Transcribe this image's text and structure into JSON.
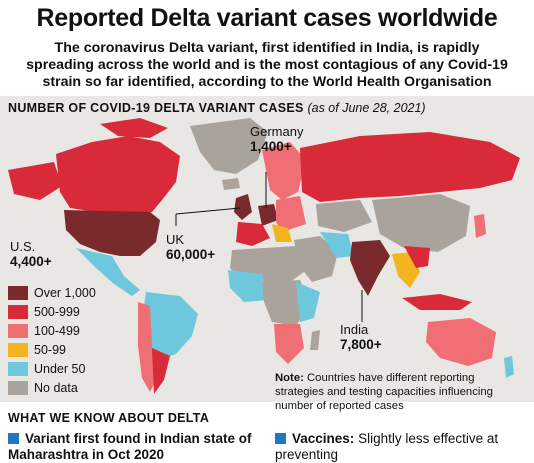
{
  "header": {
    "title": "Reported Delta variant cases worldwide",
    "subtitle": "The coronavirus Delta variant, first identified in India, is rapidly spreading across the world and is the most contagious of any Covid-19 strain so far identified, according to the World Health Organisation"
  },
  "map": {
    "section_title": "Number of Covid-19 Delta variant cases",
    "section_date": "(as of June 28, 2021)",
    "labels": {
      "germany": {
        "name": "Germany",
        "value": "1,400+"
      },
      "us": {
        "name": "U.S.",
        "value": "4,400+"
      },
      "uk": {
        "name": "UK",
        "value": "60,000+"
      },
      "india": {
        "name": "India",
        "value": "7,800+"
      }
    }
  },
  "legend": {
    "items": [
      {
        "label": "Over 1,000",
        "color": "#7a2a2c"
      },
      {
        "label": "500-999",
        "color": "#d82a38"
      },
      {
        "label": "100-499",
        "color": "#ef6f74"
      },
      {
        "label": "50-99",
        "color": "#f4b41f"
      },
      {
        "label": "Under 50",
        "color": "#6fc7dd"
      },
      {
        "label": "No data",
        "color": "#a9a39b"
      }
    ]
  },
  "note": {
    "label": "Note:",
    "text": "Countries have different reporting strategies and testing capacities influencing number of reported cases"
  },
  "delta": {
    "heading": "What we know about Delta",
    "fact1": "Variant first found in Indian state of Maharashtra in Oct 2020",
    "fact2_label": "Vaccines:",
    "fact2_text": "Slightly less effective at preventing"
  }
}
